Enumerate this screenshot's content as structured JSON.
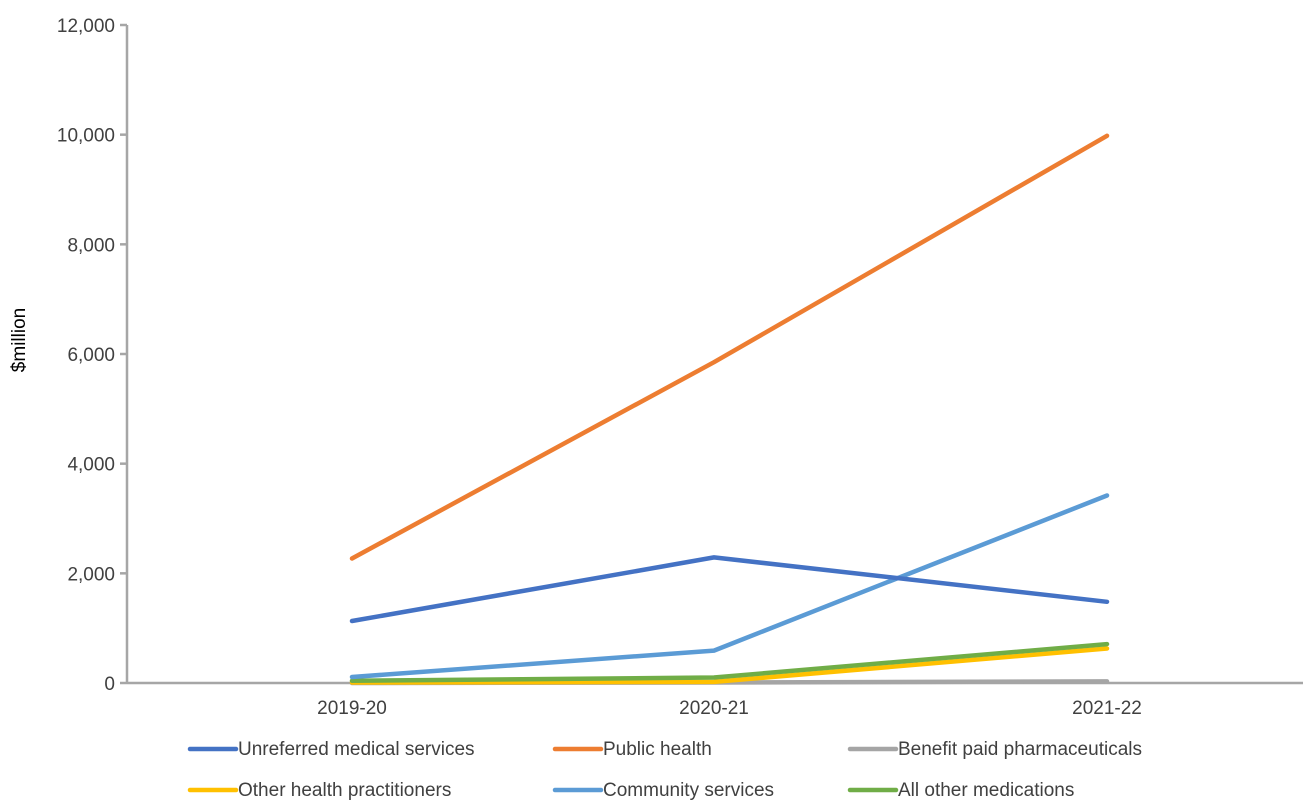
{
  "chart_data": {
    "type": "line",
    "title": "",
    "xlabel": "",
    "ylabel": "$million",
    "ylim": [
      0,
      12000
    ],
    "y_ticks": [
      0,
      2000,
      4000,
      6000,
      8000,
      10000,
      12000
    ],
    "y_tick_labels": [
      "0",
      "2,000",
      "4,000",
      "6,000",
      "8,000",
      "10,000",
      "12,000"
    ],
    "categories": [
      "2019-20",
      "2020-21",
      "2021-22"
    ],
    "grid": false,
    "legend_position": "bottom",
    "series": [
      {
        "name": "Unreferred medical services",
        "color": "#4472C4",
        "values": [
          1130,
          2290,
          1480
        ]
      },
      {
        "name": "Public health",
        "color": "#ED7D31",
        "values": [
          2270,
          5850,
          9980
        ]
      },
      {
        "name": "Benefit paid pharmaceuticals",
        "color": "#A5A5A5",
        "values": [
          0,
          10,
          30
        ]
      },
      {
        "name": "Other health practitioners",
        "color": "#FFC000",
        "values": [
          10,
          20,
          630
        ]
      },
      {
        "name": "Community services",
        "color": "#5B9BD5",
        "values": [
          110,
          590,
          3420
        ]
      },
      {
        "name": "All other medications",
        "color": "#70AD47",
        "values": [
          40,
          100,
          710
        ]
      }
    ]
  }
}
